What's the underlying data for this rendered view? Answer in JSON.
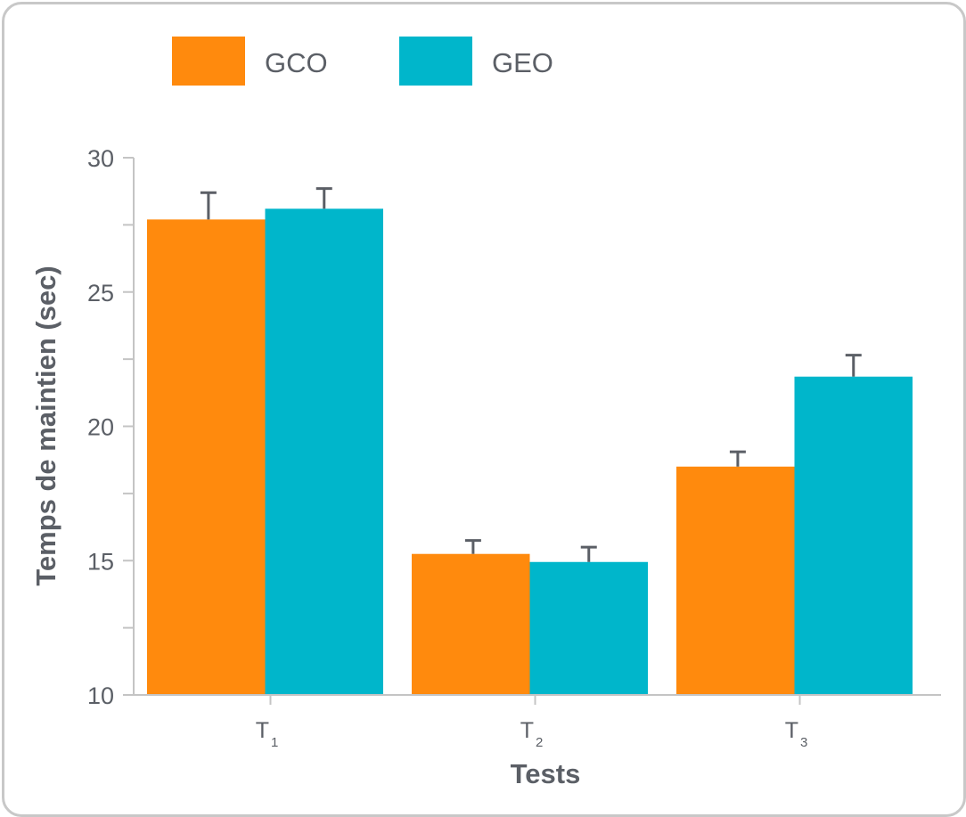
{
  "chart_data": {
    "type": "bar",
    "categories": [
      {
        "letter": "T",
        "sub": "1"
      },
      {
        "letter": "T",
        "sub": "2"
      },
      {
        "letter": "T",
        "sub": "3"
      }
    ],
    "series": [
      {
        "name": "GCO",
        "color": "#ff8a0d",
        "values": [
          27.7,
          15.25,
          18.5
        ],
        "errors": [
          1.0,
          0.5,
          0.55
        ]
      },
      {
        "name": "GEO",
        "color": "#00b6cb",
        "values": [
          28.1,
          14.95,
          21.85
        ],
        "errors": [
          0.75,
          0.55,
          0.8
        ]
      }
    ],
    "xlabel": "Tests",
    "ylabel": "Temps de maintien (sec)",
    "ylim": [
      10,
      30
    ],
    "yticks": [
      10,
      15,
      20,
      25,
      30
    ],
    "legend_position": "top",
    "grid": false
  }
}
